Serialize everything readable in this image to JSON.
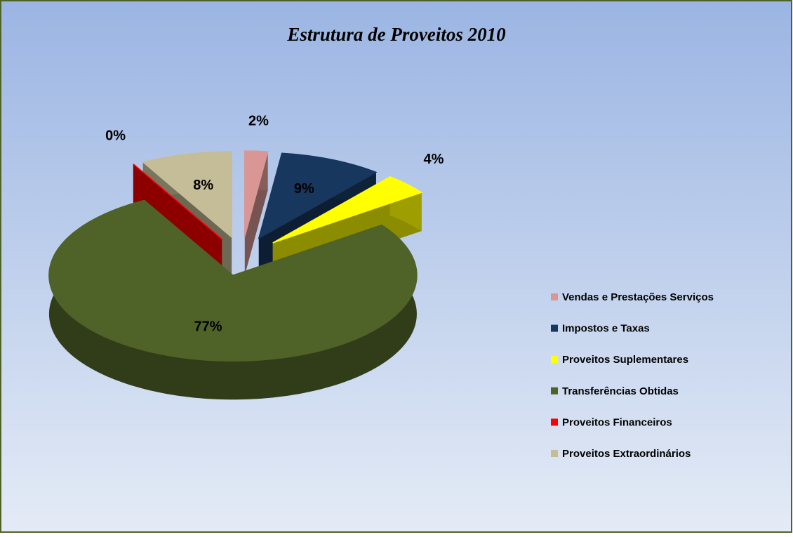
{
  "chart_data": {
    "type": "pie3d",
    "title": "Estrutura de Proveitos 2010",
    "categories": [
      "Vendas e Prestações Serviços",
      "Impostos e Taxas",
      "Proveitos Suplementares",
      "Transferências Obtidas",
      "Proveitos Financeiros",
      "Proveitos Extraordinários"
    ],
    "values": [
      2,
      9,
      4,
      77,
      0,
      8
    ],
    "value_labels": [
      "2%",
      "9%",
      "4%",
      "77%",
      "0%",
      "8%"
    ],
    "colors": [
      "#d99694",
      "#17375e",
      "#ffff00",
      "#4f6228",
      "#ff0000",
      "#c4bd97"
    ],
    "legend": "right"
  }
}
